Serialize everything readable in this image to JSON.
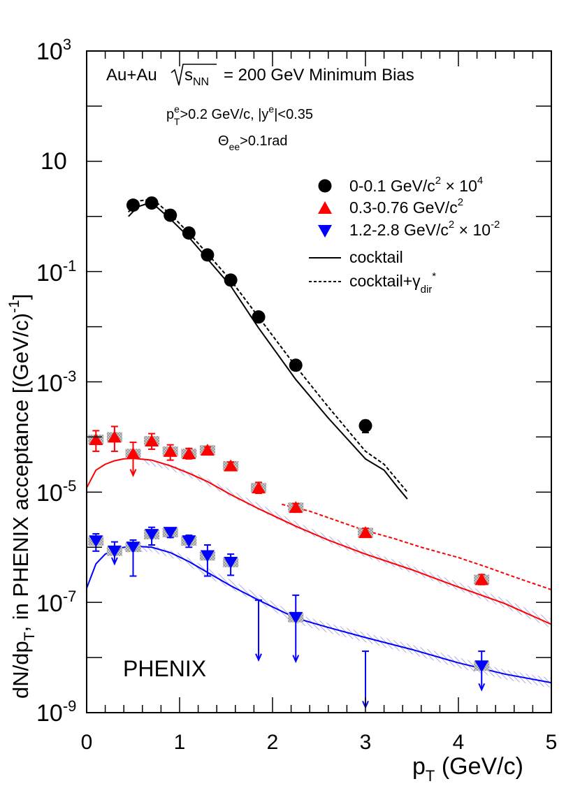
{
  "chart_data": {
    "type": "scatter",
    "x_scale": "linear",
    "y_scale": "log",
    "xlim": [
      0,
      5
    ],
    "ylim": [
      1e-09,
      1000
    ],
    "xlabel": {
      "main": "p",
      "sub": "T",
      "rest": " (GeV/c)"
    },
    "ylabel": {
      "a": "dN/dp",
      "a_sub": "T",
      "b": ", in PHENIX acceptance [(GeV/c)",
      "b_sup": "-1",
      "c": "]"
    },
    "x_ticks": [
      {
        "value": 0,
        "label": "0"
      },
      {
        "value": 1,
        "label": "1"
      },
      {
        "value": 2,
        "label": "2"
      },
      {
        "value": 3,
        "label": "3"
      },
      {
        "value": 4,
        "label": "4"
      },
      {
        "value": 5,
        "label": "5"
      }
    ],
    "y_ticks": [
      {
        "value": 1000,
        "base": "10",
        "exp": "3"
      },
      {
        "value": 10,
        "base": "10",
        "exp": ""
      },
      {
        "value": 0.1,
        "base": "10",
        "exp": "-1"
      },
      {
        "value": 0.001,
        "base": "10",
        "exp": "-3"
      },
      {
        "value": 1e-05,
        "base": "10",
        "exp": "-5"
      },
      {
        "value": 1e-07,
        "base": "10",
        "exp": "-7"
      },
      {
        "value": 1e-09,
        "base": "10",
        "exp": "-9"
      }
    ],
    "annotations": {
      "system": "Au+Au",
      "sqrt_s": "s",
      "sqrt_s_sub": "NN",
      "energy": "= 200 GeV Minimum Bias",
      "cut1": {
        "p": "p",
        "p_sup": "e",
        "p_sub": "T",
        "rest1": ">0.2 GeV/c, |y",
        "y_sup": "e",
        "rest2": "|<0.35"
      },
      "cut2": {
        "theta": "Θ",
        "theta_sub": "ee",
        "rest": ">0.1rad"
      },
      "experiment": "PHENIX"
    },
    "legend": {
      "position": "top-right",
      "entries": [
        {
          "text": "0-0.1 GeV/c",
          "sup": "2",
          "suffix": " × 10",
          "suffix_sup": "4",
          "marker": "circle",
          "color": "#000000"
        },
        {
          "text": "0.3-0.76 GeV/c",
          "sup": "2",
          "suffix": "",
          "suffix_sup": "",
          "marker": "triangle-up",
          "color": "#ff0000"
        },
        {
          "text": "1.2-2.8 GeV/c",
          "sup": "2",
          "suffix": " × 10",
          "suffix_sup": "-2",
          "marker": "triangle-down",
          "color": "#0000ff"
        },
        {
          "text": "cocktail",
          "marker": "solid-line",
          "color": "#000000"
        },
        {
          "text": "cocktail+γ",
          "sub": "dir",
          "sup": "*",
          "marker": "dashed-line",
          "color": "#000000"
        }
      ]
    },
    "series": [
      {
        "name": "0-0.1 GeV/c2 x 10^4",
        "color": "#000000",
        "marker": "circle",
        "points": [
          {
            "x": 0.5,
            "y": 1.6,
            "lo": 1.35,
            "hi": 1.9
          },
          {
            "x": 0.7,
            "y": 1.75,
            "lo": 1.5,
            "hi": 2.0
          },
          {
            "x": 0.9,
            "y": 1.05,
            "lo": 0.92,
            "hi": 1.2
          },
          {
            "x": 1.1,
            "y": 0.5,
            "lo": 0.43,
            "hi": 0.58
          },
          {
            "x": 1.3,
            "y": 0.2,
            "lo": 0.17,
            "hi": 0.23
          },
          {
            "x": 1.55,
            "y": 0.07,
            "lo": 0.06,
            "hi": 0.08
          },
          {
            "x": 1.85,
            "y": 0.015,
            "lo": 0.0128,
            "hi": 0.0175
          },
          {
            "x": 2.25,
            "y": 0.002,
            "lo": 0.0017,
            "hi": 0.0024
          },
          {
            "x": 3.0,
            "y": 0.00016,
            "lo": 0.00012,
            "hi": 0.0002
          }
        ]
      },
      {
        "name": "0.3-0.76 GeV/c2",
        "color": "#ff0000",
        "marker": "triangle-up",
        "points": [
          {
            "x": 0.1,
            "y": 9e-05,
            "lo": 5.5e-05,
            "hi": 0.00013,
            "syst": true
          },
          {
            "x": 0.3,
            "y": 0.0001,
            "lo": 5.5e-05,
            "hi": 0.000155,
            "syst": true
          },
          {
            "x": 0.5,
            "y": 5e-05,
            "lo": 2e-05,
            "hi": 8e-05,
            "arrow": true,
            "syst": true
          },
          {
            "x": 0.7,
            "y": 8.5e-05,
            "lo": 6e-05,
            "hi": 0.000115,
            "syst": true
          },
          {
            "x": 0.9,
            "y": 5.5e-05,
            "lo": 3.8e-05,
            "hi": 7.2e-05,
            "syst": true
          },
          {
            "x": 1.1,
            "y": 5e-05,
            "lo": 4e-05,
            "hi": 6.2e-05,
            "syst": true
          },
          {
            "x": 1.3,
            "y": 5.8e-05,
            "lo": 5e-05,
            "hi": 6.6e-05,
            "syst": true
          },
          {
            "x": 1.55,
            "y": 3e-05,
            "lo": 2.6e-05,
            "hi": 3.5e-05,
            "syst": true
          },
          {
            "x": 1.85,
            "y": 1.2e-05,
            "lo": 9.5e-06,
            "hi": 1.5e-05,
            "syst": true
          },
          {
            "x": 2.25,
            "y": 5.3e-06,
            "lo": 4.5e-06,
            "hi": 6.2e-06,
            "syst": true
          },
          {
            "x": 3.0,
            "y": 1.85e-06,
            "lo": 1.55e-06,
            "hi": 2.2e-06,
            "syst": true
          },
          {
            "x": 4.25,
            "y": 2.6e-07,
            "lo": 2.1e-07,
            "hi": 3.2e-07,
            "syst": true
          }
        ]
      },
      {
        "name": "1.2-2.8 GeV/c2 x 10^-2",
        "color": "#0000ff",
        "marker": "triangle-down",
        "points": [
          {
            "x": 0.1,
            "y": 1.3e-06,
            "lo": 8.5e-07,
            "hi": 1.75e-06,
            "syst": true
          },
          {
            "x": 0.3,
            "y": 8.5e-07,
            "lo": 5e-07,
            "hi": 1.25e-06,
            "arrow": true,
            "syst": true
          },
          {
            "x": 0.5,
            "y": 1e-06,
            "lo": 3e-07,
            "hi": 1.35e-06,
            "syst": true
          },
          {
            "x": 0.7,
            "y": 1.7e-06,
            "lo": 1.1e-06,
            "hi": 2.3e-06,
            "syst": true
          },
          {
            "x": 0.9,
            "y": 1.85e-06,
            "lo": 1.5e-06,
            "hi": 2.25e-06,
            "syst": true
          },
          {
            "x": 1.1,
            "y": 1.3e-06,
            "lo": 1e-06,
            "hi": 1.65e-06,
            "syst": true
          },
          {
            "x": 1.3,
            "y": 7e-07,
            "lo": 3e-07,
            "hi": 1.1e-06,
            "syst": true
          },
          {
            "x": 1.55,
            "y": 5.3e-07,
            "lo": 3.1e-07,
            "hi": 7.5e-07,
            "syst": true
          },
          {
            "x": 1.85,
            "y": 1.1e-07,
            "lo": 9e-09,
            "hi": 1.1e-07,
            "arrow": true,
            "syst": false,
            "upper_only": true
          },
          {
            "x": 2.25,
            "y": 5.3e-08,
            "lo": 8.5e-09,
            "hi": 1.35e-07,
            "arrow": true,
            "syst": true
          },
          {
            "x": 3.0,
            "y": 1.3e-08,
            "lo": 1.25e-09,
            "hi": 1.3e-08,
            "arrow": true,
            "syst": false,
            "upper_only": true
          },
          {
            "x": 4.25,
            "y": 7e-09,
            "lo": 2.6e-09,
            "hi": 1.3e-08,
            "arrow": true,
            "syst": true
          }
        ]
      }
    ],
    "curves": [
      {
        "name": "cocktail (0-0.1)",
        "color": "#000000",
        "dash": false,
        "x": [
          0.45,
          0.55,
          0.65,
          0.75,
          0.9,
          1.1,
          1.3,
          1.55,
          1.85,
          2.25,
          2.6,
          3.0,
          3.2,
          3.35,
          3.45
        ],
        "y": [
          1.0,
          1.5,
          1.7,
          1.5,
          0.9,
          0.42,
          0.17,
          0.055,
          0.0095,
          0.0011,
          0.00022,
          4e-05,
          2.5e-05,
          1.2e-05,
          7.5e-06
        ]
      },
      {
        "name": "cocktail+gamma_dir (0-0.1)",
        "color": "#000000",
        "dash": true,
        "x": [
          0.45,
          0.55,
          0.65,
          0.75,
          0.9,
          1.1,
          1.3,
          1.55,
          1.85,
          2.25,
          2.6,
          3.0,
          3.2,
          3.35,
          3.45
        ],
        "y": [
          1.2,
          1.9,
          2.0,
          1.8,
          1.1,
          0.5,
          0.21,
          0.07,
          0.015,
          0.0019,
          0.00035,
          5.5e-05,
          3.2e-05,
          1.6e-05,
          1e-05
        ]
      },
      {
        "name": "cocktail (0.3-0.76)",
        "color": "#ff0000",
        "dash": false,
        "x": [
          0.0,
          0.1,
          0.2,
          0.3,
          0.4,
          0.5,
          0.7,
          0.9,
          1.1,
          1.3,
          1.55,
          1.85,
          2.25,
          2.6,
          3.0,
          3.5,
          4.0,
          4.5,
          5.0
        ],
        "y": [
          1.2e-05,
          2.5e-05,
          3.2e-05,
          3.7e-05,
          4e-05,
          4.1e-05,
          3.8e-05,
          3e-05,
          2.2e-05,
          1.55e-05,
          9e-06,
          5e-06,
          2.4e-06,
          1.35e-06,
          7.5e-07,
          3.9e-07,
          1.9e-07,
          9.5e-08,
          4e-08
        ]
      },
      {
        "name": "cocktail+gamma_dir (0.3-0.76)",
        "color": "#ff0000",
        "dash": true,
        "x": [
          2.1,
          2.4,
          2.7,
          3.0,
          3.3,
          3.6,
          4.0,
          4.3,
          4.6,
          5.0
        ],
        "y": [
          6e-06,
          4.5e-06,
          3e-06,
          2e-06,
          1.45e-06,
          1e-06,
          6.5e-07,
          4.4e-07,
          2.9e-07,
          1.7e-07
        ]
      },
      {
        "name": "cocktail (1.2-2.8)",
        "color": "#0000ff",
        "dash": false,
        "x": [
          0.0,
          0.1,
          0.2,
          0.3,
          0.4,
          0.5,
          0.7,
          0.9,
          1.1,
          1.3,
          1.55,
          1.85,
          2.25,
          2.6,
          3.0,
          3.5,
          4.0,
          4.5,
          5.0
        ],
        "y": [
          1.8e-07,
          5e-07,
          7.5e-07,
          9e-07,
          1e-06,
          1.05e-06,
          1e-06,
          8e-07,
          5.5e-07,
          3.5e-07,
          2e-07,
          1.1e-07,
          5.2e-08,
          3.5e-08,
          2.3e-08,
          1.4e-08,
          8e-09,
          5e-09,
          3.5e-09
        ]
      }
    ],
    "bands": [
      {
        "name": "cocktail uncertainty (0.3-0.76)",
        "color": "#9999dd",
        "x": [
          0.6,
          0.9,
          1.2,
          1.5,
          1.85,
          2.25,
          2.6,
          3.0,
          3.5,
          4.0,
          4.5,
          5.0
        ],
        "lo": [
          3.3e-05,
          2.5e-05,
          1.6e-05,
          9e-06,
          4.7e-06,
          2.2e-06,
          1.2e-06,
          6.6e-07,
          3.4e-07,
          1.65e-07,
          8e-08,
          3.4e-08
        ],
        "hi": [
          4.2e-05,
          3.2e-05,
          2.1e-05,
          1.2e-05,
          6.2e-06,
          2.9e-06,
          1.6e-06,
          8.8e-07,
          4.6e-07,
          2.3e-07,
          1.15e-07,
          5e-08
        ]
      },
      {
        "name": "cocktail uncertainty (1.2-2.8)",
        "color": "#9999dd",
        "x": [
          0.4,
          0.7,
          1.0,
          1.3,
          1.6,
          1.9,
          2.25,
          2.6,
          3.0,
          3.5,
          4.0,
          4.5,
          5.0
        ],
        "lo": [
          8e-07,
          8.3e-07,
          5.8e-07,
          2.9e-07,
          1.6e-07,
          8.8e-08,
          4.2e-08,
          2.8e-08,
          1.9e-08,
          1.15e-08,
          6.5e-09,
          4e-09,
          2.8e-09
        ],
        "hi": [
          1.05e-06,
          1.1e-06,
          7.8e-07,
          4.2e-07,
          2.3e-07,
          1.25e-07,
          6.2e-08,
          4.2e-08,
          2.8e-08,
          1.7e-08,
          1e-08,
          6e-09,
          4.2e-09
        ]
      }
    ]
  }
}
